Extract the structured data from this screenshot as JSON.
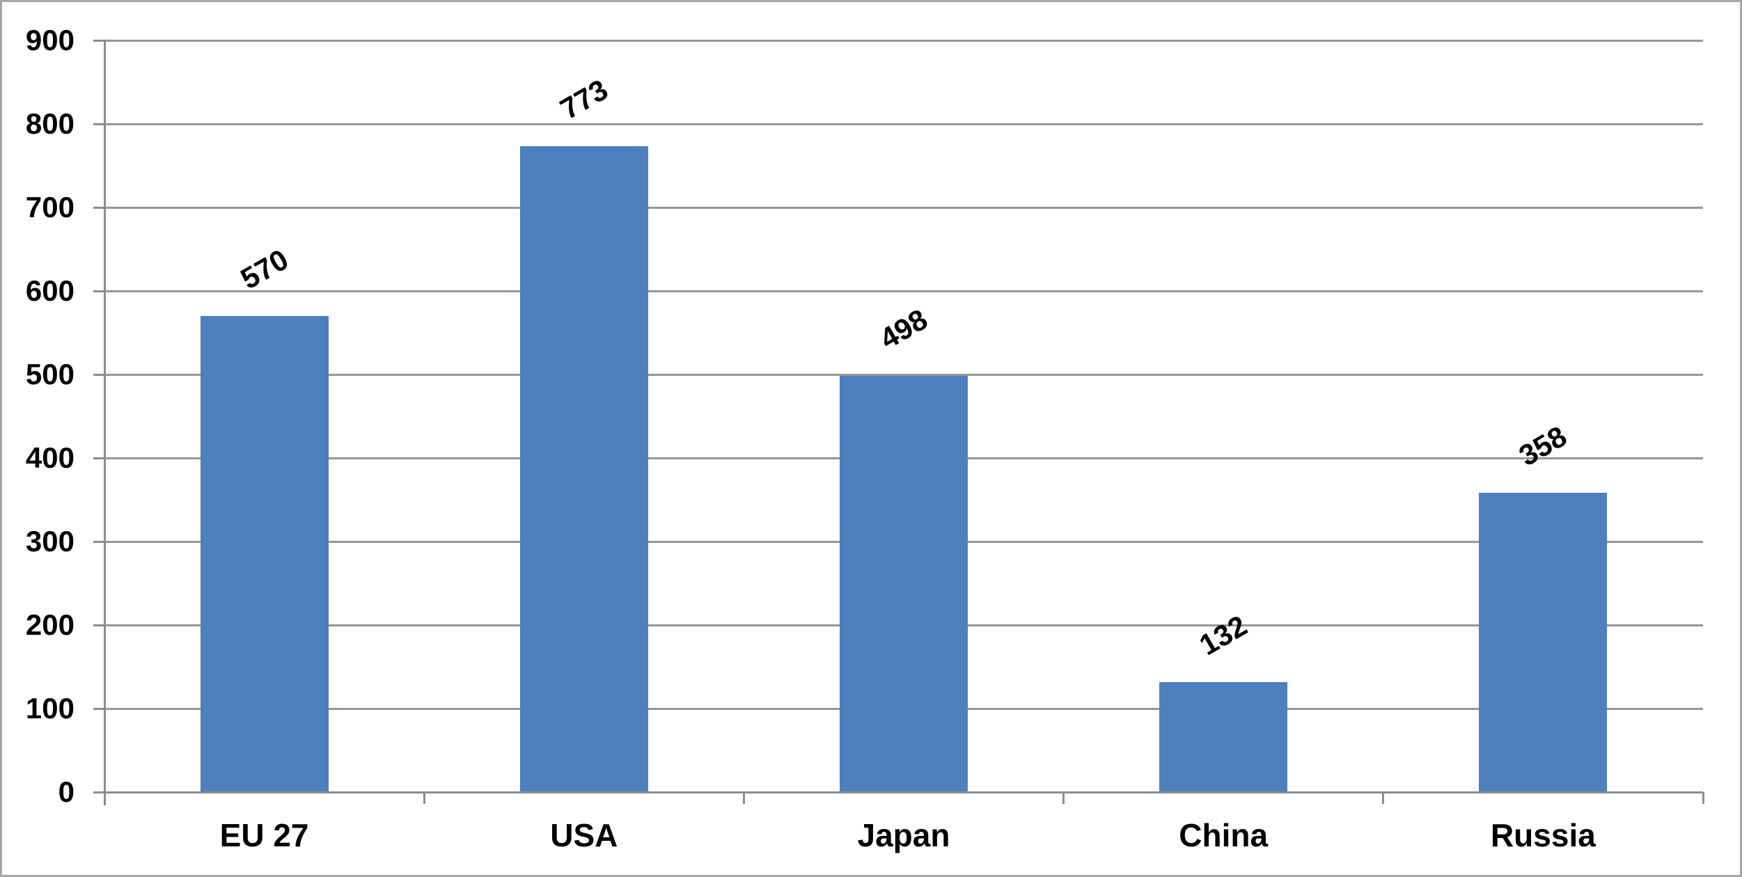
{
  "chart_data": {
    "type": "bar",
    "categories": [
      "EU 27",
      "USA",
      "Japan",
      "China",
      "Russia"
    ],
    "values": [
      570,
      773,
      498,
      132,
      358
    ],
    "data_labels": [
      "570",
      "773",
      "498",
      "132",
      "358"
    ],
    "title": "",
    "xlabel": "",
    "ylabel": "",
    "ylim": [
      0,
      900
    ],
    "ytick_step": 100,
    "ytick_labels": [
      "0",
      "100",
      "200",
      "300",
      "400",
      "500",
      "600",
      "700",
      "800",
      "900"
    ],
    "grid": true,
    "legend_position": "none",
    "data_label_rotation_deg": -30,
    "bar_color": "#4d80bd"
  },
  "colors": {
    "bar": "#4d80bd",
    "gridline": "#969696",
    "axis": "#8c8c8c",
    "frame_border": "#a6a6a6",
    "text": "#000000",
    "background": "#ffffff"
  }
}
